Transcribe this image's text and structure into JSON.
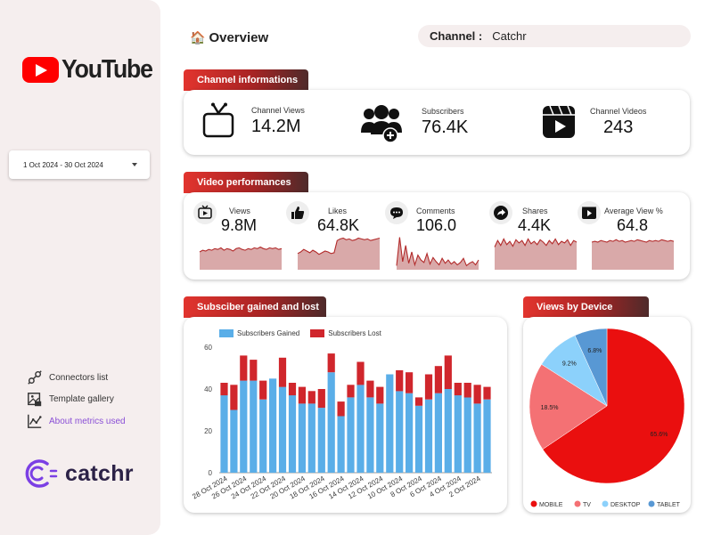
{
  "sidebar": {
    "brand": "YouTube",
    "date_range": "1 Oct 2024 - 30 Oct 2024",
    "links": [
      {
        "label": "Connectors list",
        "icon": "plug-icon"
      },
      {
        "label": "Template gallery",
        "icon": "gallery-icon"
      },
      {
        "label": "About metrics used",
        "icon": "chart-line-icon"
      }
    ],
    "footer_brand": "catchr"
  },
  "header": {
    "title": "Overview",
    "channel_label": "Channel :",
    "channel_value": "Catchr"
  },
  "channel_info": {
    "header": "Channel informations",
    "kpis": [
      {
        "label": "Channel Views",
        "value": "14.2M",
        "icon": "tv-icon"
      },
      {
        "label": "Subscribers",
        "value": "76.4K",
        "icon": "users-add-icon"
      },
      {
        "label": "Channel Videos",
        "value": "243",
        "icon": "video-clapper-icon"
      }
    ]
  },
  "video_perf": {
    "header": "Video performances",
    "kpis": [
      {
        "label": "Views",
        "value": "9.8M",
        "icon": "video-views-icon"
      },
      {
        "label": "Likes",
        "value": "64.8K",
        "icon": "thumbs-up-icon"
      },
      {
        "label": "Comments",
        "value": "106.0",
        "icon": "comment-icon"
      },
      {
        "label": "Shares",
        "value": "4.4K",
        "icon": "share-icon"
      },
      {
        "label": "Average View %",
        "value": "64.8",
        "icon": "video-percent-icon"
      }
    ]
  },
  "subs_chart": {
    "header": "Subsciber gained and lost"
  },
  "device_chart": {
    "header": "Views by Device"
  },
  "colors": {
    "accent": "#e2342e",
    "gained": "#5aaee8",
    "lost": "#d0262c",
    "sparkline": "#b22a2a"
  },
  "chart_data": [
    {
      "type": "bar",
      "stacked": true,
      "title": "Subsciber gained and lost",
      "categories": [
        "28 Oct 2024",
        "27 Oct 2024",
        "26 Oct 2024",
        "25 Oct 2024",
        "24 Oct 2024",
        "23 Oct 2024",
        "22 Oct 2024",
        "21 Oct 2024",
        "20 Oct 2024",
        "19 Oct 2024",
        "18 Oct 2024",
        "17 Oct 2024",
        "16 Oct 2024",
        "15 Oct 2024",
        "14 Oct 2024",
        "13 Oct 2024",
        "12 Oct 2024",
        "11 Oct 2024",
        "10 Oct 2024",
        "9 Oct 2024",
        "8 Oct 2024",
        "7 Oct 2024",
        "6 Oct 2024",
        "5 Oct 2024",
        "4 Oct 2024",
        "3 Oct 2024",
        "2 Oct 2024",
        "1 Oct 2024"
      ],
      "tick_labels": [
        "28 Oct 2024",
        "26 Oct 2024",
        "24 Oct 2024",
        "22 Oct 2024",
        "20 Oct 2024",
        "18 Oct 2024",
        "16 Oct 2024",
        "14 Oct 2024",
        "12 Oct 2024",
        "10 Oct 2024",
        "8 Oct 2024",
        "6 Oct 2024",
        "4 Oct 2024",
        "2 Oct 2024"
      ],
      "series": [
        {
          "name": "Subscribers Gained",
          "values": [
            37,
            30,
            44,
            44,
            35,
            45,
            41,
            37,
            33,
            33,
            31,
            48,
            27,
            36,
            42,
            36,
            33,
            47,
            39,
            38,
            32,
            35,
            38,
            40,
            37,
            36,
            33,
            35
          ]
        },
        {
          "name": "Subscribers Lost",
          "values": [
            6,
            12,
            12,
            10,
            9,
            0,
            14,
            6,
            8,
            6,
            9,
            9,
            7,
            6,
            11,
            8,
            8,
            0,
            10,
            10,
            4,
            12,
            13,
            16,
            6,
            7,
            9,
            6
          ]
        }
      ],
      "ylim": [
        0,
        60
      ],
      "yticks": [
        0,
        20,
        40,
        60
      ],
      "legend": "top"
    },
    {
      "type": "pie",
      "title": "Views by Device",
      "categories": [
        "MOBILE",
        "TV",
        "DESKTOP",
        "TABLET"
      ],
      "values": [
        65.6,
        18.5,
        9.2,
        6.8
      ],
      "labels": [
        "65.6%",
        "18.5%",
        "9.2%",
        "6.8%"
      ],
      "colors": [
        "#ea0f0f",
        "#f47174",
        "#8cd1fb",
        "#5898d4"
      ],
      "legend": "bottom"
    },
    {
      "type": "area",
      "title": "Views",
      "values": [
        22,
        24,
        23,
        25,
        24,
        26,
        25,
        27,
        24,
        26,
        25,
        23,
        26,
        27,
        25,
        24,
        26,
        25,
        27,
        26,
        28,
        26,
        25,
        27,
        26,
        27,
        25,
        26
      ]
    },
    {
      "type": "area",
      "title": "Likes",
      "values": [
        20,
        22,
        25,
        23,
        21,
        24,
        22,
        19,
        21,
        23,
        22,
        20,
        21,
        36,
        38,
        39,
        37,
        38,
        36,
        37,
        39,
        38,
        37,
        38,
        36,
        37,
        38,
        39
      ]
    },
    {
      "type": "area",
      "title": "Comments",
      "values": [
        5,
        40,
        10,
        30,
        8,
        22,
        6,
        18,
        12,
        9,
        20,
        7,
        15,
        10,
        6,
        14,
        8,
        12,
        7,
        10,
        6,
        9,
        14,
        5,
        8,
        10,
        6,
        12
      ]
    },
    {
      "type": "area",
      "title": "Shares",
      "values": [
        28,
        36,
        30,
        38,
        31,
        35,
        29,
        37,
        33,
        36,
        30,
        38,
        32,
        35,
        31,
        37,
        34,
        30,
        36,
        32,
        38,
        31,
        35,
        33,
        37,
        30,
        36,
        34
      ]
    },
    {
      "type": "area",
      "title": "Average View %",
      "values": [
        34,
        35,
        34,
        36,
        35,
        34,
        36,
        35,
        37,
        35,
        36,
        34,
        35,
        36,
        35,
        37,
        36,
        35,
        34,
        36,
        35,
        36,
        35,
        37,
        36,
        35,
        36,
        35
      ]
    }
  ]
}
